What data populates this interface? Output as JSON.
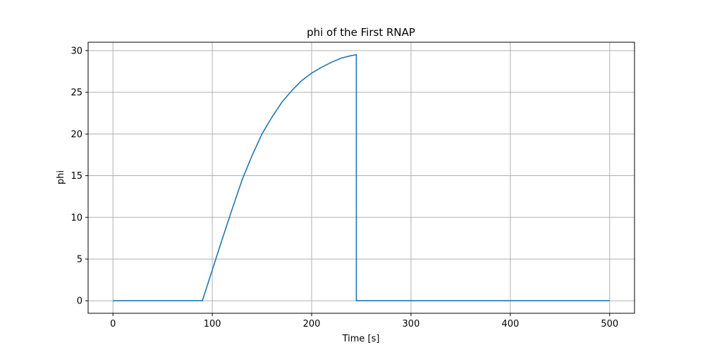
{
  "chart_data": {
    "type": "line",
    "title": "phi of the First RNAP",
    "xlabel": "Time [s]",
    "ylabel": "phi",
    "xlim": [
      -25,
      525
    ],
    "ylim": [
      -1.5,
      31
    ],
    "xticks": [
      0,
      100,
      200,
      300,
      400,
      500
    ],
    "yticks": [
      0,
      5,
      10,
      15,
      20,
      25,
      30
    ],
    "xtick_labels": [
      "0",
      "100",
      "200",
      "300",
      "400",
      "500"
    ],
    "ytick_labels": [
      "0",
      "5",
      "10",
      "15",
      "20",
      "25",
      "30"
    ],
    "grid": true,
    "legend": false,
    "series": [
      {
        "color": "#1f77b4",
        "x": [
          0,
          90,
          100,
          110,
          120,
          130,
          140,
          150,
          160,
          170,
          180,
          190,
          200,
          210,
          220,
          230,
          240,
          245,
          245,
          500
        ],
        "y": [
          0,
          0,
          3.7,
          7.4,
          11.0,
          14.5,
          17.4,
          20.0,
          22.0,
          23.8,
          25.2,
          26.4,
          27.3,
          28.0,
          28.6,
          29.1,
          29.4,
          29.5,
          0,
          0
        ]
      }
    ]
  }
}
